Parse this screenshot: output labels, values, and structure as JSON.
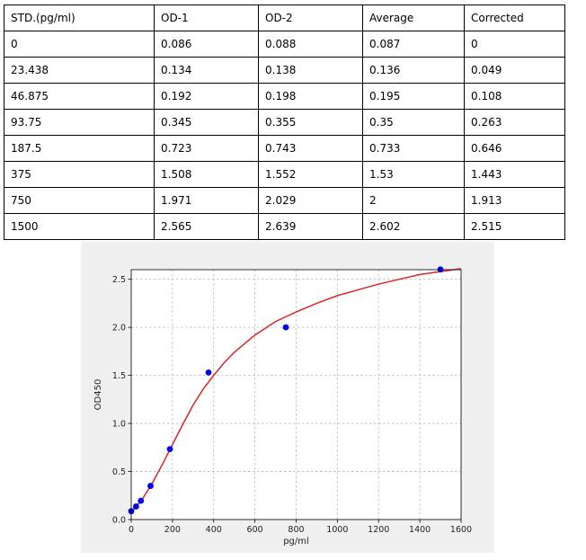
{
  "table": {
    "headers": [
      "STD.(pg/ml)",
      "OD-1",
      "OD-2",
      "Average",
      "Corrected"
    ],
    "rows": [
      [
        "0",
        "0.086",
        "0.088",
        "0.087",
        "0"
      ],
      [
        "23.438",
        "0.134",
        "0.138",
        "0.136",
        "0.049"
      ],
      [
        "46.875",
        "0.192",
        "0.198",
        "0.195",
        "0.108"
      ],
      [
        "93.75",
        "0.345",
        "0.355",
        "0.35",
        "0.263"
      ],
      [
        "187.5",
        "0.723",
        "0.743",
        "0.733",
        "0.646"
      ],
      [
        "375",
        "1.508",
        "1.552",
        "1.53",
        "1.443"
      ],
      [
        "750",
        "1.971",
        "2.029",
        "2",
        "1.913"
      ],
      [
        "1500",
        "2.565",
        "2.639",
        "2.602",
        "2.515"
      ]
    ]
  },
  "chart_data": {
    "type": "scatter",
    "title": "",
    "xlabel": "pg/ml",
    "ylabel": "OD450",
    "xlim": [
      0,
      1600
    ],
    "ylim": [
      0,
      2.6
    ],
    "xticks": [
      "0",
      "200",
      "400",
      "600",
      "800",
      "1000",
      "1200",
      "1400",
      "1600"
    ],
    "yticks": [
      "0.0",
      "0.5",
      "1.0",
      "1.5",
      "2.0",
      "2.5"
    ],
    "grid": true,
    "series": [
      {
        "kind": "points",
        "color": "#0000ee",
        "x": [
          0,
          23.438,
          46.875,
          93.75,
          187.5,
          375,
          750,
          1500
        ],
        "y": [
          0.087,
          0.136,
          0.195,
          0.35,
          0.733,
          1.53,
          2.0,
          2.602
        ]
      },
      {
        "kind": "fit-curve",
        "color": "#d62728",
        "x": [
          0,
          25,
          50,
          100,
          150,
          200,
          250,
          300,
          350,
          400,
          450,
          500,
          600,
          700,
          800,
          900,
          1000,
          1100,
          1200,
          1300,
          1400,
          1500,
          1600
        ],
        "y": [
          0.08,
          0.14,
          0.2,
          0.37,
          0.57,
          0.78,
          0.99,
          1.19,
          1.36,
          1.5,
          1.63,
          1.74,
          1.92,
          2.06,
          2.16,
          2.25,
          2.33,
          2.39,
          2.45,
          2.5,
          2.55,
          2.58,
          2.61
        ]
      }
    ]
  }
}
